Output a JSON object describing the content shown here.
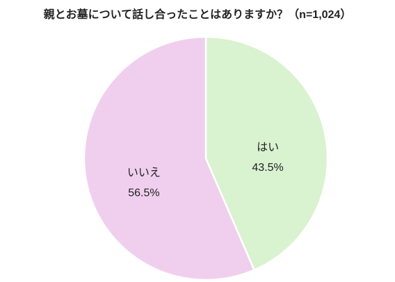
{
  "chart_data": {
    "type": "pie",
    "title": "親とお墓について話し合ったことはありますか？（n=1,024）",
    "categories": [
      "はい",
      "いいえ"
    ],
    "values": [
      43.5,
      56.5
    ],
    "value_labels": [
      "43.5%",
      "56.5%"
    ],
    "colors": [
      "#d9f2d0",
      "#f0cfee"
    ]
  }
}
